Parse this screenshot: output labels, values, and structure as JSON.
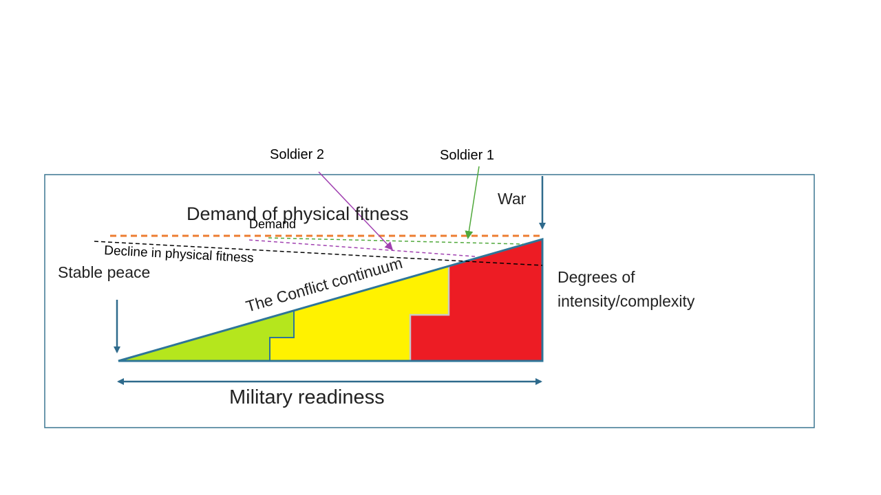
{
  "labels": {
    "soldier_2": "Soldier 2",
    "soldier_1": "Soldier 1",
    "war": "War",
    "demand_of_physical_fitness": "Demand of physical fitness",
    "demand": "Demand",
    "decline": "Decline in physical fitness",
    "stable_peace": "Stable peace",
    "conflict_continuum": "The Conflict continuum",
    "degrees_line1": "Degrees of",
    "degrees_line2": "intensity/complexity",
    "military_readiness": "Military readiness"
  },
  "colors": {
    "frame": "#3a7591",
    "triangle_edge": "#2e7598",
    "green_zone": "#b5e61d",
    "yellow_zone": "#fff200",
    "red_zone": "#ed1c24",
    "demand_line": "#ed7d31",
    "soldier1": "#4fa83a",
    "soldier2": "#a040b0",
    "decline_line": "#000000",
    "arrow": "#2e6a8c"
  }
}
